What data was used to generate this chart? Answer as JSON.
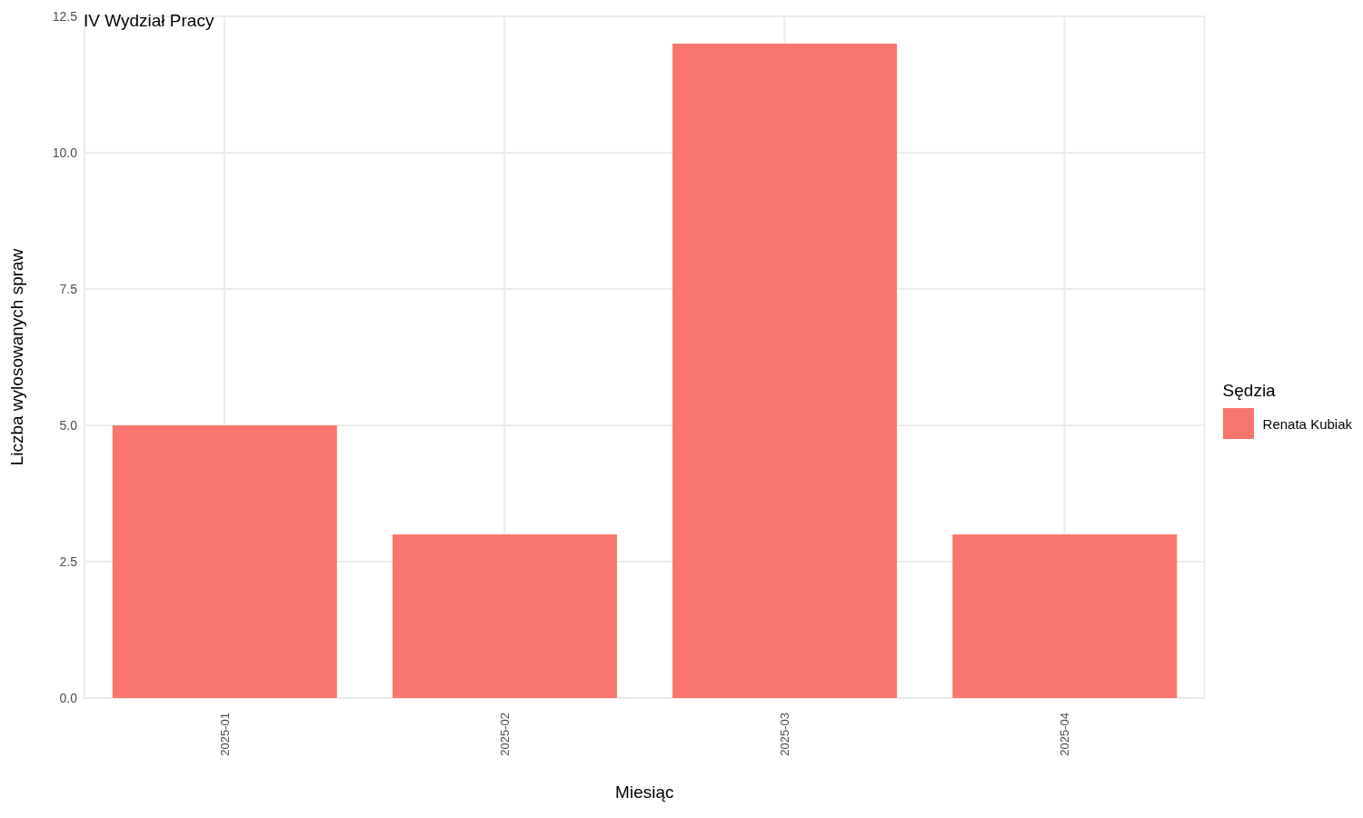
{
  "chart_data": {
    "type": "bar",
    "title": "IV Wydział Pracy",
    "xlabel": "Miesiąc",
    "ylabel": "Liczba wylosowanych spraw",
    "legend_title": "Sędzia",
    "categories": [
      "2025-01",
      "2025-02",
      "2025-03",
      "2025-04"
    ],
    "series": [
      {
        "name": "Renata Kubiak",
        "color": "#f8766d",
        "values": [
          5,
          3,
          12,
          3
        ]
      }
    ],
    "ylim": [
      0,
      12.5
    ],
    "yticks": [
      {
        "value": 0,
        "label": "0.0"
      },
      {
        "value": 2.5,
        "label": "2.5"
      },
      {
        "value": 5,
        "label": "5.0"
      },
      {
        "value": 7.5,
        "label": "7.5"
      },
      {
        "value": 10,
        "label": "10.0"
      },
      {
        "value": 12.5,
        "label": "12.5"
      }
    ],
    "grid": true,
    "legend": "right"
  }
}
